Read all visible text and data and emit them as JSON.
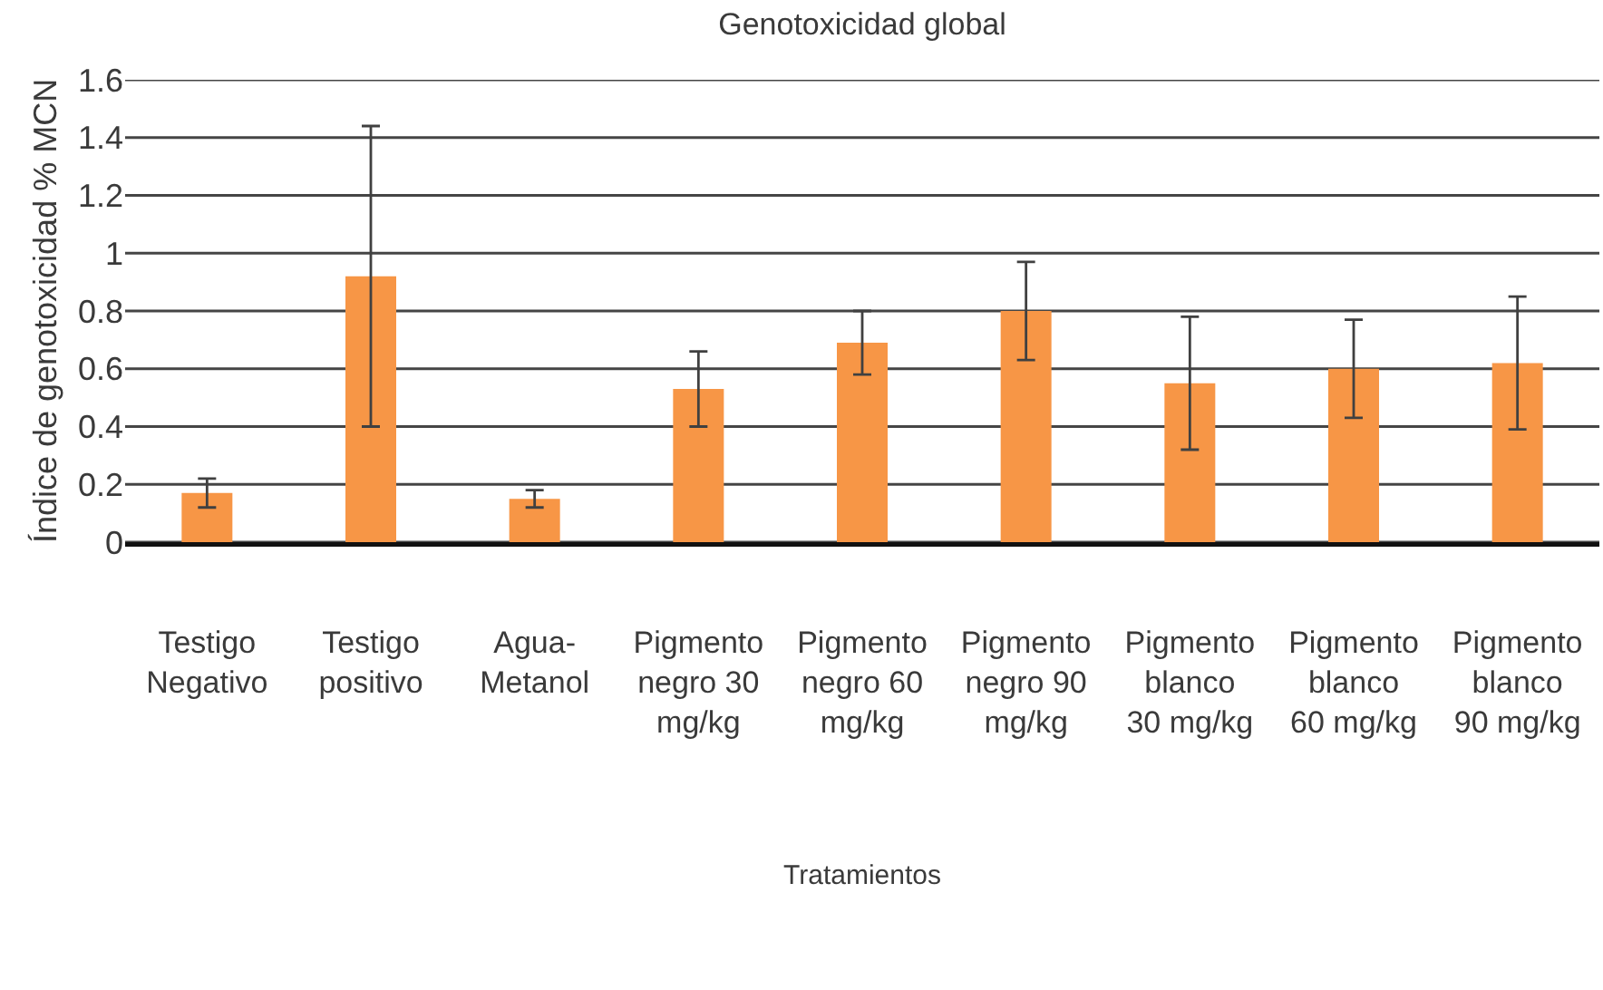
{
  "chart_data": {
    "type": "bar",
    "title": "Genotoxicidad global",
    "xlabel": "Tratamientos",
    "ylabel": "Índice de genotoxicidad % MCN",
    "categories": [
      "Testigo Negativo",
      "Testigo positivo",
      "Agua-Metanol",
      "Pigmento negro 30 mg/kg",
      "Pigmento negro 60 mg/kg",
      "Pigmento negro 90 mg/kg",
      "Pigmento blanco 30 mg/kg",
      "Pigmento blanco 60 mg/kg",
      "Pigmento blanco 90 mg/kg"
    ],
    "values": [
      0.17,
      0.92,
      0.15,
      0.53,
      0.69,
      0.8,
      0.55,
      0.6,
      0.62
    ],
    "errors": [
      0.05,
      0.52,
      0.03,
      0.13,
      0.11,
      0.17,
      0.23,
      0.17,
      0.23
    ],
    "color": "#f79646",
    "ylim": [
      0,
      1.6
    ],
    "yticks": [
      0,
      0.2,
      0.4,
      0.6,
      0.8,
      1,
      1.2,
      1.4,
      1.6
    ],
    "grid": "y"
  }
}
